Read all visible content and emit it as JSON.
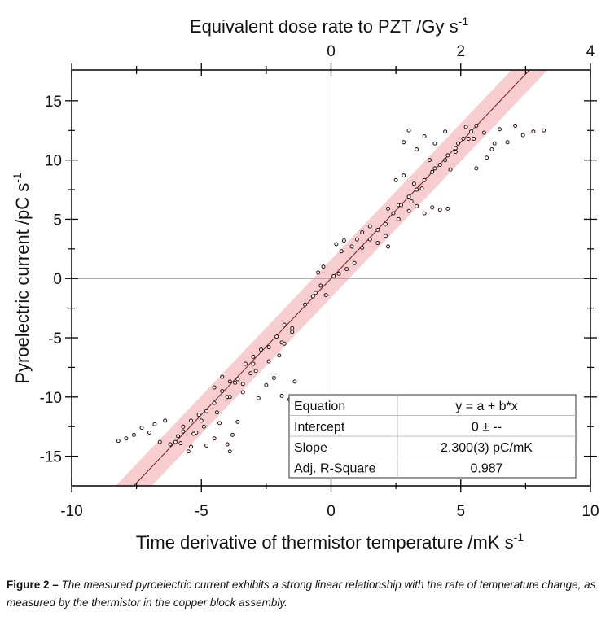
{
  "chart_data": {
    "type": "scatter",
    "top_axis": {
      "label": "Equivalent dose rate to PZT   /Gy s",
      "label_sup": "-1",
      "range": [
        -4,
        4
      ],
      "ticks": [
        -4,
        -3,
        -2,
        -1,
        0,
        1,
        2,
        3,
        4
      ],
      "tick_labels": [
        "0",
        "2",
        "4"
      ],
      "tick_label_values": [
        0,
        2,
        4
      ]
    },
    "xlabel": "Time derivative of thermistor temperature   /mK s",
    "xlabel_sup": "-1",
    "ylabel": "Pyroelectric current   /pC s",
    "ylabel_sup": "-1",
    "xlim": [
      -10,
      10
    ],
    "ylim": [
      -17.5,
      17.6
    ],
    "x_ticks": [
      -10,
      -5,
      0,
      5,
      10
    ],
    "x_tick_labels": [
      "-10",
      "-5",
      "0",
      "5",
      "10"
    ],
    "y_ticks": [
      -15,
      -10,
      -5,
      0,
      5,
      10,
      15
    ],
    "y_tick_labels": [
      "-15",
      "-10",
      "-5",
      "0",
      "5",
      "10",
      "15"
    ],
    "grid": false,
    "zero_lines": true,
    "fit": {
      "slope": 2.3,
      "intercept": 0,
      "line_color": "#7a1a1a",
      "band_color": "#f4b8bc",
      "band_halfwidth_y": 1.6
    },
    "marker_color": "#2a0c0c",
    "points": [
      [
        -8.2,
        -13.7
      ],
      [
        -7.9,
        -13.5
      ],
      [
        -7.6,
        -13.2
      ],
      [
        -7.3,
        -12.6
      ],
      [
        -7.0,
        -13.0
      ],
      [
        -6.8,
        -12.3
      ],
      [
        -6.6,
        -13.8
      ],
      [
        -6.4,
        -12.0
      ],
      [
        -6.2,
        -14.0
      ],
      [
        -5.9,
        -13.3
      ],
      [
        -5.7,
        -12.5
      ],
      [
        -5.4,
        -14.2
      ],
      [
        -5.2,
        -13.0
      ],
      [
        -5.0,
        -12.0
      ],
      [
        -4.8,
        -14.1
      ],
      [
        -4.5,
        -13.5
      ],
      [
        -4.3,
        -12.2
      ],
      [
        -4.0,
        -14.0
      ],
      [
        -3.8,
        -13.2
      ],
      [
        -3.6,
        -12.1
      ],
      [
        -5.5,
        -14.6
      ],
      [
        -3.9,
        -14.6
      ],
      [
        -4.5,
        -9.2
      ],
      [
        -4.2,
        -8.3
      ],
      [
        -4.0,
        -10.0
      ],
      [
        -3.7,
        -8.8
      ],
      [
        -3.4,
        -9.6
      ],
      [
        -3.1,
        -8.0
      ],
      [
        -2.8,
        -10.1
      ],
      [
        -2.5,
        -9.0
      ],
      [
        -2.2,
        -8.4
      ],
      [
        -1.9,
        -9.9
      ],
      [
        -1.6,
        -10.2
      ],
      [
        -1.4,
        -8.7
      ],
      [
        -3.0,
        -7.2
      ],
      [
        -2.0,
        -6.5
      ],
      [
        -1.5,
        -4.2
      ],
      [
        -1.8,
        -5.5
      ],
      [
        -0.6,
        -1.2
      ],
      [
        -0.4,
        -0.6
      ],
      [
        -0.5,
        0.5
      ],
      [
        -0.3,
        1.0
      ],
      [
        -0.2,
        -1.4
      ],
      [
        0.1,
        0.2
      ],
      [
        0.3,
        0.4
      ],
      [
        0.6,
        0.8
      ],
      [
        0.9,
        1.3
      ],
      [
        0.2,
        2.9
      ],
      [
        0.5,
        3.2
      ],
      [
        0.8,
        2.7
      ],
      [
        1.0,
        3.3
      ],
      [
        1.2,
        3.9
      ],
      [
        1.5,
        4.4
      ],
      [
        1.8,
        3.0
      ],
      [
        2.2,
        2.7
      ],
      [
        2.1,
        3.6
      ],
      [
        0.4,
        2.3
      ],
      [
        2.2,
        5.9
      ],
      [
        2.6,
        6.2
      ],
      [
        3.0,
        5.7
      ],
      [
        3.3,
        6.1
      ],
      [
        3.6,
        5.5
      ],
      [
        3.9,
        6.0
      ],
      [
        4.2,
        5.8
      ],
      [
        4.5,
        5.9
      ],
      [
        2.5,
        8.3
      ],
      [
        2.8,
        8.7
      ],
      [
        3.2,
        8.0
      ],
      [
        2.8,
        11.5
      ],
      [
        3.0,
        12.5
      ],
      [
        3.3,
        10.9
      ],
      [
        3.6,
        12.0
      ],
      [
        4.0,
        11.4
      ],
      [
        4.4,
        12.4
      ],
      [
        4.8,
        10.7
      ],
      [
        5.2,
        12.8
      ],
      [
        5.5,
        11.8
      ],
      [
        5.9,
        12.3
      ],
      [
        6.2,
        10.9
      ],
      [
        6.5,
        12.6
      ],
      [
        6.8,
        11.5
      ],
      [
        7.1,
        12.9
      ],
      [
        7.4,
        12.1
      ],
      [
        7.8,
        12.4
      ],
      [
        8.2,
        12.5
      ],
      [
        6.0,
        10.2
      ],
      [
        5.6,
        9.3
      ],
      [
        6.3,
        11.4
      ],
      [
        3.8,
        10.0
      ],
      [
        4.6,
        9.2
      ],
      [
        -6.0,
        -13.8
      ],
      [
        -5.7,
        -12.9
      ],
      [
        -5.4,
        -12.0
      ],
      [
        -5.1,
        -11.5
      ],
      [
        -4.8,
        -11.2
      ],
      [
        -4.5,
        -10.5
      ],
      [
        -4.2,
        -9.5
      ],
      [
        -3.9,
        -8.7
      ],
      [
        -3.6,
        -8.5
      ],
      [
        -3.3,
        -7.2
      ],
      [
        -3.0,
        -6.6
      ],
      [
        -2.7,
        -6.0
      ],
      [
        -2.4,
        -5.8
      ],
      [
        -2.1,
        -4.9
      ],
      [
        -1.8,
        -3.9
      ],
      [
        -5.8,
        -13.9
      ],
      [
        -5.3,
        -13.1
      ],
      [
        -4.9,
        -12.5
      ],
      [
        -4.4,
        -11.3
      ],
      [
        -3.9,
        -10.0
      ],
      [
        -3.4,
        -8.9
      ],
      [
        -2.9,
        -7.8
      ],
      [
        -2.4,
        -7.0
      ],
      [
        -1.9,
        -5.4
      ],
      [
        -1.5,
        -4.5
      ],
      [
        -1.0,
        -2.2
      ],
      [
        -0.7,
        -1.5
      ],
      [
        1.2,
        2.6
      ],
      [
        1.5,
        3.3
      ],
      [
        1.8,
        4.1
      ],
      [
        2.1,
        4.6
      ],
      [
        2.4,
        5.5
      ],
      [
        2.7,
        6.2
      ],
      [
        3.0,
        6.9
      ],
      [
        3.3,
        7.5
      ],
      [
        3.6,
        8.3
      ],
      [
        3.9,
        9.0
      ],
      [
        4.2,
        9.6
      ],
      [
        4.5,
        10.4
      ],
      [
        4.8,
        11.0
      ],
      [
        5.1,
        11.8
      ],
      [
        5.4,
        12.4
      ],
      [
        5.6,
        12.9
      ],
      [
        2.6,
        5.0
      ],
      [
        3.1,
        6.5
      ],
      [
        3.5,
        7.6
      ],
      [
        4.0,
        9.3
      ],
      [
        4.4,
        10.0
      ],
      [
        4.9,
        11.4
      ],
      [
        5.3,
        11.8
      ]
    ],
    "fit_table": [
      {
        "label": "Equation",
        "value": "y = a + b*x"
      },
      {
        "label": "Intercept",
        "value": "0 ± --"
      },
      {
        "label": "Slope",
        "value": "2.300(3) pC/mK"
      },
      {
        "label": "Adj. R-Square",
        "value": "0.987"
      }
    ]
  },
  "caption": {
    "label": "Figure 2 –",
    "text": " The measured pyroelectric current exhibits a strong linear relationship with the rate of temperature change, as measured by the thermistor in the copper block assembly."
  }
}
